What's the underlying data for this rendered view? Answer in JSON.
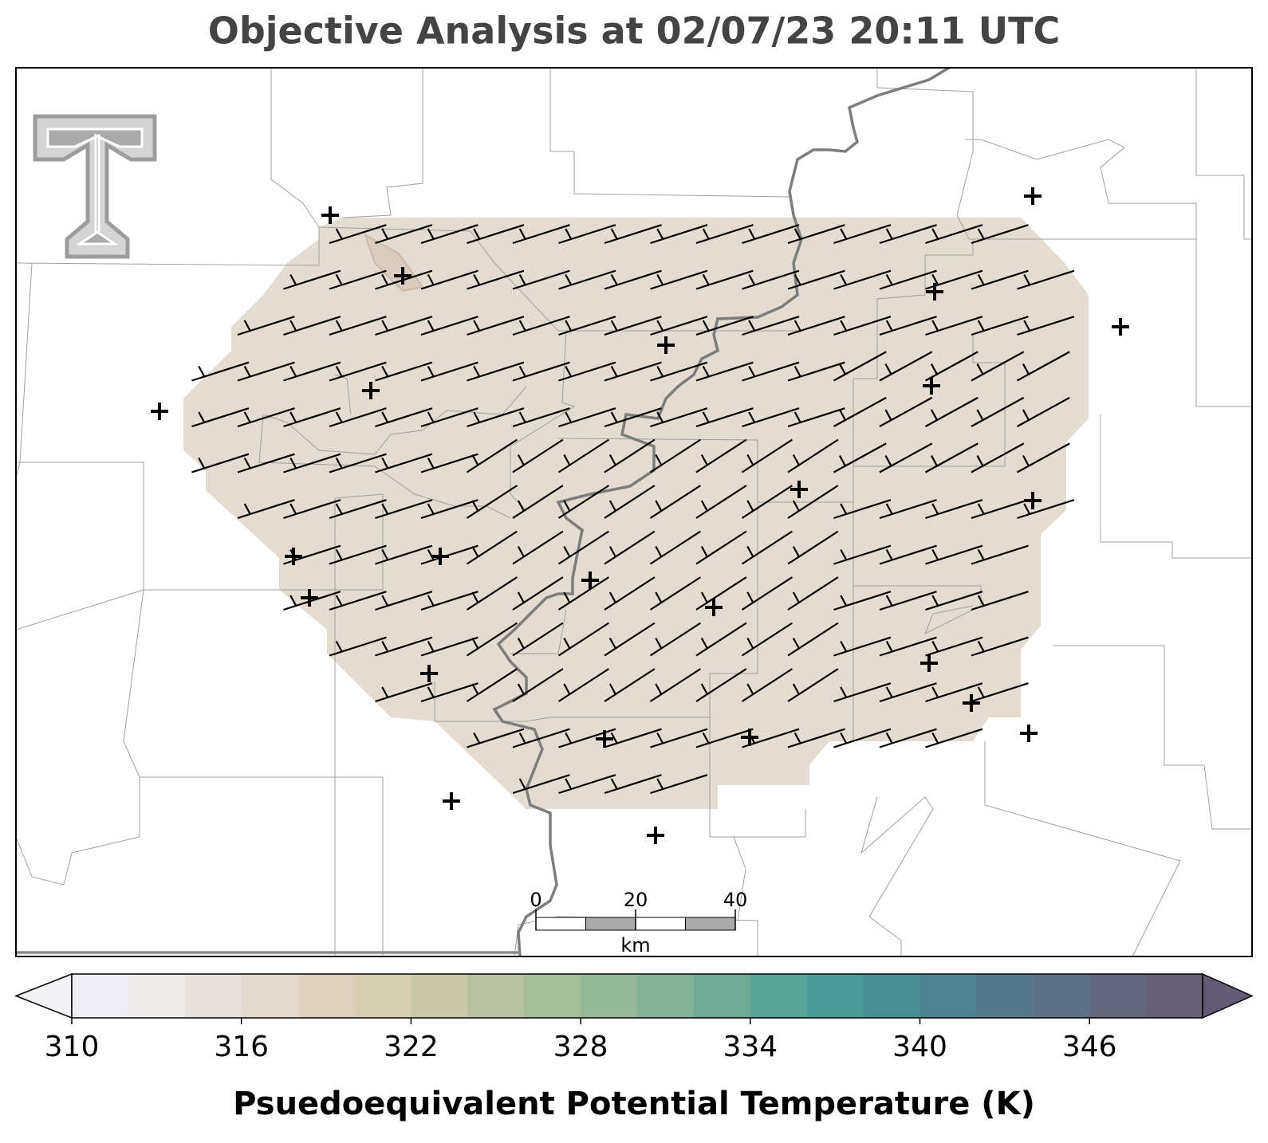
{
  "title": "Objective Analysis at 02/07/23 20:11 UTC",
  "colorbar": {
    "label": "Psuedoequivalent Potential Temperature (K)",
    "levels": [
      310,
      312,
      314,
      316,
      318,
      320,
      322,
      324,
      326,
      328,
      330,
      332,
      334,
      336,
      338,
      340,
      342,
      344,
      346,
      348,
      350
    ],
    "colors": [
      "#eeedf3",
      "#ecebea",
      "#e7e1dc",
      "#e3d9cf",
      "#dfd3c0",
      "#d5ceb1",
      "#c9c8a8",
      "#b8c2a3",
      "#a6bd9c",
      "#95b89a",
      "#82b297",
      "#6eab96",
      "#58a496",
      "#4a9b96",
      "#488f94",
      "#4c8491",
      "#557a8c",
      "#5e7084",
      "#64677c",
      "#665f75"
    ],
    "under_color": "#f1f1f6",
    "over_color": "#635b73",
    "ticks": [
      310,
      316,
      322,
      328,
      334,
      340,
      346
    ]
  },
  "scale_bar": {
    "ticks": [
      0,
      20,
      40
    ],
    "unit": "km"
  }
}
